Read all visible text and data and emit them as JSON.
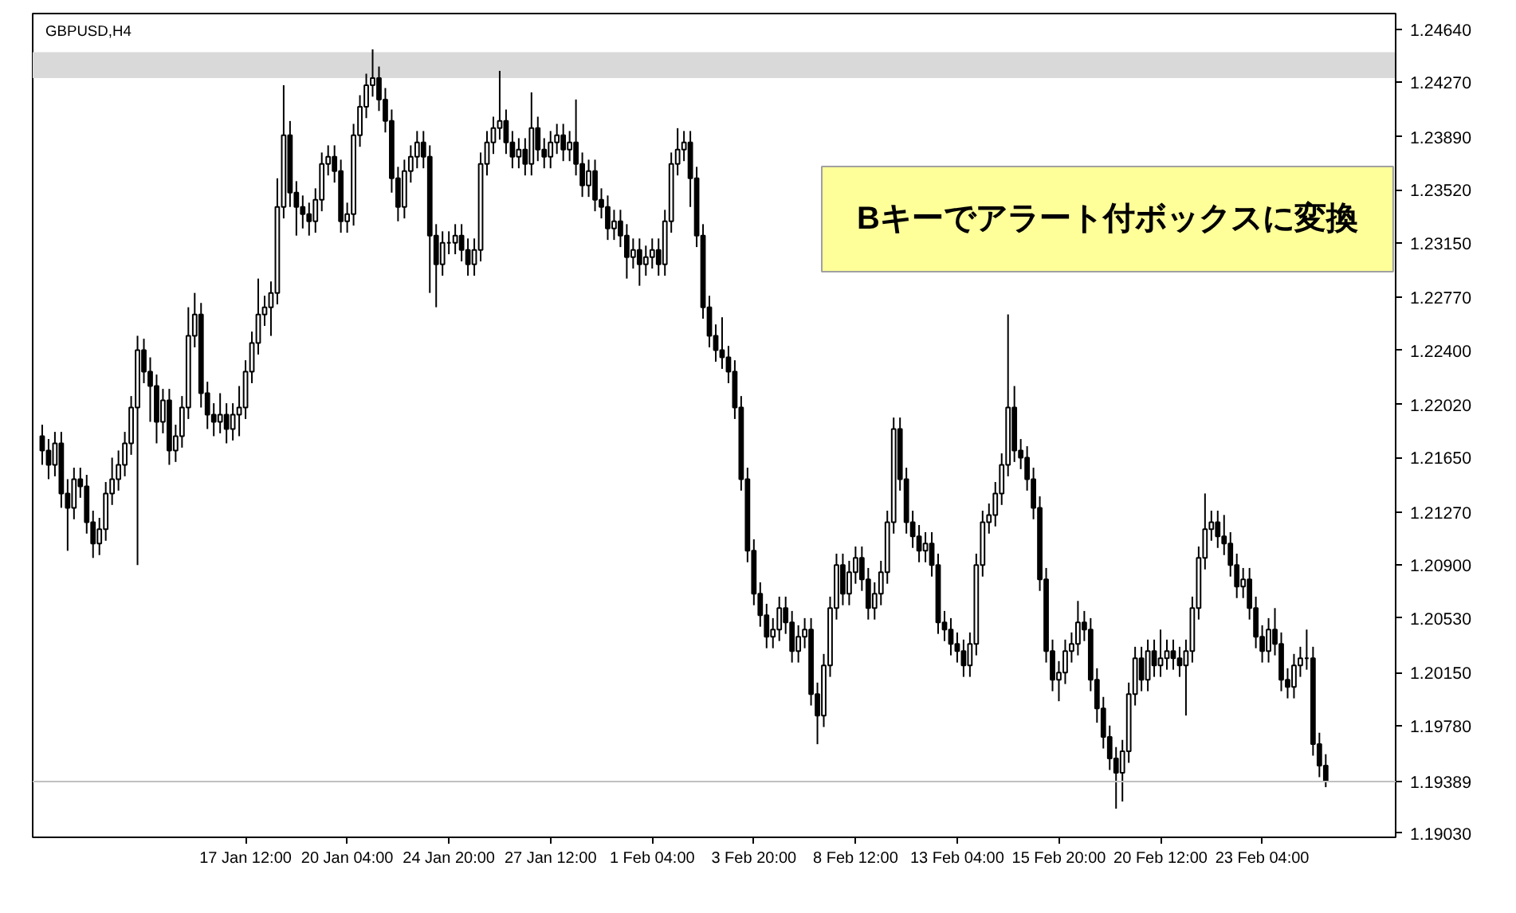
{
  "chart_data": {
    "type": "candlestick",
    "title": "GBPUSD,H4",
    "categories": [
      null,
      null,
      null,
      null,
      null,
      null,
      null,
      null,
      null,
      null,
      null,
      null,
      null,
      null,
      null,
      null,
      null,
      null,
      null,
      null,
      null,
      null,
      null,
      null,
      null,
      null,
      null,
      null,
      null,
      null,
      null,
      null,
      "17 Jan 12:00",
      null,
      null,
      null,
      null,
      null,
      null,
      null,
      null,
      null,
      null,
      null,
      null,
      null,
      null,
      null,
      "20 Jan 04:00",
      null,
      null,
      null,
      null,
      null,
      null,
      null,
      null,
      null,
      null,
      null,
      null,
      null,
      null,
      null,
      "24 Jan 20:00",
      null,
      null,
      null,
      null,
      null,
      null,
      null,
      null,
      null,
      null,
      null,
      null,
      null,
      null,
      null,
      "27 Jan 12:00",
      null,
      null,
      null,
      null,
      null,
      null,
      null,
      null,
      null,
      null,
      null,
      null,
      null,
      null,
      null,
      "1 Feb 04:00",
      null,
      null,
      null,
      null,
      null,
      null,
      null,
      null,
      null,
      null,
      null,
      null,
      null,
      null,
      null,
      "3 Feb 20:00",
      null,
      null,
      null,
      null,
      null,
      null,
      null,
      null,
      null,
      null,
      null,
      null,
      null,
      null,
      null,
      "8 Feb 12:00",
      null,
      null,
      null,
      null,
      null,
      null,
      null,
      null,
      null,
      null,
      null,
      null,
      null,
      null,
      null,
      "13 Feb 04:00",
      null,
      null,
      null,
      null,
      null,
      null,
      null,
      null,
      null,
      null,
      null,
      null,
      null,
      null,
      null,
      "15 Feb 20:00",
      null,
      null,
      null,
      null,
      null,
      null,
      null,
      null,
      null,
      null,
      null,
      null,
      null,
      null,
      null,
      "20 Feb 12:00",
      null,
      null,
      null,
      null,
      null,
      null,
      null,
      null,
      null,
      null,
      null,
      null,
      null,
      null,
      null,
      "23 Feb 04:00",
      null,
      null,
      null,
      null,
      null,
      null,
      null,
      null,
      null,
      null
    ],
    "ohlc": [
      [
        1.218,
        1.2188,
        1.216,
        1.217
      ],
      [
        1.217,
        1.2178,
        1.215,
        1.216
      ],
      [
        1.216,
        1.2183,
        1.2152,
        1.2175
      ],
      [
        1.2175,
        1.2183,
        1.213,
        1.214
      ],
      [
        1.214,
        1.215,
        1.21,
        1.213
      ],
      [
        1.213,
        1.2158,
        1.2122,
        1.215
      ],
      [
        1.215,
        1.2158,
        1.2137,
        1.2145
      ],
      [
        1.2145,
        1.2153,
        1.2112,
        1.212
      ],
      [
        1.212,
        1.2128,
        1.2095,
        1.2105
      ],
      [
        1.2105,
        1.2123,
        1.2097,
        1.2115
      ],
      [
        1.2115,
        1.2148,
        1.2107,
        1.214
      ],
      [
        1.214,
        1.2165,
        1.2132,
        1.215
      ],
      [
        1.215,
        1.217,
        1.2142,
        1.216
      ],
      [
        1.216,
        1.2183,
        1.2152,
        1.2175
      ],
      [
        1.2175,
        1.2208,
        1.2167,
        1.22
      ],
      [
        1.22,
        1.225,
        1.209,
        1.224
      ],
      [
        1.224,
        1.2248,
        1.2217,
        1.2225
      ],
      [
        1.2225,
        1.2235,
        1.219,
        1.2215
      ],
      [
        1.2215,
        1.2223,
        1.2175,
        1.219
      ],
      [
        1.219,
        1.2213,
        1.2182,
        1.2205
      ],
      [
        1.2205,
        1.2213,
        1.216,
        1.217
      ],
      [
        1.217,
        1.2188,
        1.2162,
        1.218
      ],
      [
        1.218,
        1.2208,
        1.2172,
        1.22
      ],
      [
        1.22,
        1.227,
        1.2192,
        1.225
      ],
      [
        1.225,
        1.228,
        1.2242,
        1.2265
      ],
      [
        1.2265,
        1.2273,
        1.22,
        1.221
      ],
      [
        1.221,
        1.2218,
        1.2185,
        1.2195
      ],
      [
        1.2195,
        1.2203,
        1.218,
        1.219
      ],
      [
        1.219,
        1.221,
        1.2182,
        1.2195
      ],
      [
        1.2195,
        1.2203,
        1.2175,
        1.2185
      ],
      [
        1.2185,
        1.2203,
        1.2177,
        1.2195
      ],
      [
        1.2195,
        1.2215,
        1.218,
        1.22
      ],
      [
        1.22,
        1.2233,
        1.2192,
        1.2225
      ],
      [
        1.2225,
        1.2253,
        1.2217,
        1.2245
      ],
      [
        1.2245,
        1.229,
        1.2237,
        1.2265
      ],
      [
        1.2265,
        1.2278,
        1.2257,
        1.227
      ],
      [
        1.227,
        1.2288,
        1.225,
        1.228
      ],
      [
        1.228,
        1.236,
        1.2272,
        1.234
      ],
      [
        1.234,
        1.2425,
        1.2332,
        1.239
      ],
      [
        1.239,
        1.24,
        1.234,
        1.235
      ],
      [
        1.235,
        1.2358,
        1.232,
        1.234
      ],
      [
        1.234,
        1.2348,
        1.2325,
        1.2335
      ],
      [
        1.2335,
        1.2343,
        1.232,
        1.233
      ],
      [
        1.233,
        1.2353,
        1.2322,
        1.2345
      ],
      [
        1.2345,
        1.2378,
        1.2337,
        1.237
      ],
      [
        1.237,
        1.2383,
        1.2362,
        1.2375
      ],
      [
        1.2375,
        1.2383,
        1.2357,
        1.2365
      ],
      [
        1.2365,
        1.2373,
        1.2322,
        1.233
      ],
      [
        1.233,
        1.2343,
        1.2322,
        1.2335
      ],
      [
        1.2335,
        1.2398,
        1.2327,
        1.239
      ],
      [
        1.239,
        1.2418,
        1.2382,
        1.241
      ],
      [
        1.241,
        1.2433,
        1.2402,
        1.2425
      ],
      [
        1.2425,
        1.245,
        1.2417,
        1.243
      ],
      [
        1.243,
        1.2438,
        1.2407,
        1.2415
      ],
      [
        1.2415,
        1.2423,
        1.2392,
        1.24
      ],
      [
        1.24,
        1.2408,
        1.235,
        1.236
      ],
      [
        1.236,
        1.2368,
        1.233,
        1.234
      ],
      [
        1.234,
        1.2373,
        1.2332,
        1.2365
      ],
      [
        1.2365,
        1.2383,
        1.2357,
        1.2375
      ],
      [
        1.2375,
        1.2393,
        1.2367,
        1.2385
      ],
      [
        1.2385,
        1.2393,
        1.2367,
        1.2375
      ],
      [
        1.2375,
        1.2383,
        1.228,
        1.232
      ],
      [
        1.232,
        1.2328,
        1.227,
        1.23
      ],
      [
        1.23,
        1.2323,
        1.2292,
        1.2315
      ],
      [
        1.2315,
        1.2323,
        1.2307,
        1.2315
      ],
      [
        1.2315,
        1.2328,
        1.2307,
        1.232
      ],
      [
        1.232,
        1.2328,
        1.2302,
        1.231
      ],
      [
        1.231,
        1.2318,
        1.2292,
        1.23
      ],
      [
        1.23,
        1.2318,
        1.2292,
        1.231
      ],
      [
        1.231,
        1.2378,
        1.2302,
        1.237
      ],
      [
        1.237,
        1.2393,
        1.2362,
        1.2385
      ],
      [
        1.2385,
        1.2403,
        1.2377,
        1.2395
      ],
      [
        1.2395,
        1.2435,
        1.2387,
        1.24
      ],
      [
        1.24,
        1.2408,
        1.2377,
        1.2385
      ],
      [
        1.2385,
        1.2393,
        1.2367,
        1.2375
      ],
      [
        1.2375,
        1.2388,
        1.2367,
        1.238
      ],
      [
        1.238,
        1.2388,
        1.2362,
        1.237
      ],
      [
        1.237,
        1.242,
        1.2362,
        1.2395
      ],
      [
        1.2395,
        1.2403,
        1.2372,
        1.238
      ],
      [
        1.238,
        1.2388,
        1.2367,
        1.2375
      ],
      [
        1.2375,
        1.2393,
        1.2367,
        1.2385
      ],
      [
        1.2385,
        1.2398,
        1.2377,
        1.239
      ],
      [
        1.239,
        1.2398,
        1.2372,
        1.238
      ],
      [
        1.238,
        1.2393,
        1.2372,
        1.2385
      ],
      [
        1.2385,
        1.2415,
        1.2362,
        1.237
      ],
      [
        1.237,
        1.2378,
        1.2347,
        1.2355
      ],
      [
        1.2355,
        1.2373,
        1.2347,
        1.2365
      ],
      [
        1.2365,
        1.2373,
        1.2337,
        1.2345
      ],
      [
        1.2345,
        1.2353,
        1.2332,
        1.234
      ],
      [
        1.234,
        1.2348,
        1.2317,
        1.2325
      ],
      [
        1.2325,
        1.2338,
        1.2317,
        1.233
      ],
      [
        1.233,
        1.2338,
        1.2312,
        1.232
      ],
      [
        1.232,
        1.2328,
        1.229,
        1.2305
      ],
      [
        1.2305,
        1.2318,
        1.2297,
        1.231
      ],
      [
        1.231,
        1.2318,
        1.2285,
        1.23
      ],
      [
        1.23,
        1.2313,
        1.2292,
        1.2305
      ],
      [
        1.2305,
        1.2318,
        1.2297,
        1.231
      ],
      [
        1.231,
        1.2318,
        1.2292,
        1.23
      ],
      [
        1.23,
        1.2338,
        1.2292,
        1.233
      ],
      [
        1.233,
        1.2378,
        1.2322,
        1.237
      ],
      [
        1.237,
        1.2395,
        1.2362,
        1.238
      ],
      [
        1.238,
        1.2393,
        1.2372,
        1.2385
      ],
      [
        1.2385,
        1.2393,
        1.234,
        1.236
      ],
      [
        1.236,
        1.2368,
        1.2312,
        1.232
      ],
      [
        1.232,
        1.2328,
        1.2262,
        1.227
      ],
      [
        1.227,
        1.2278,
        1.2242,
        1.225
      ],
      [
        1.225,
        1.2258,
        1.2232,
        1.224
      ],
      [
        1.224,
        1.2263,
        1.2227,
        1.2235
      ],
      [
        1.2235,
        1.2243,
        1.2217,
        1.2225
      ],
      [
        1.2225,
        1.2233,
        1.2192,
        1.22
      ],
      [
        1.22,
        1.2208,
        1.2142,
        1.215
      ],
      [
        1.215,
        1.2158,
        1.2092,
        1.21
      ],
      [
        1.21,
        1.2108,
        1.2062,
        1.207
      ],
      [
        1.207,
        1.2078,
        1.2047,
        1.2055
      ],
      [
        1.2055,
        1.2063,
        1.2032,
        1.204
      ],
      [
        1.204,
        1.2053,
        1.2032,
        1.2045
      ],
      [
        1.2045,
        1.2068,
        1.2037,
        1.206
      ],
      [
        1.206,
        1.2068,
        1.2042,
        1.205
      ],
      [
        1.205,
        1.2058,
        1.2022,
        1.203
      ],
      [
        1.203,
        1.2048,
        1.2022,
        1.204
      ],
      [
        1.204,
        1.2053,
        1.2032,
        1.2045
      ],
      [
        1.2045,
        1.2053,
        1.1992,
        1.2
      ],
      [
        1.2,
        1.2008,
        1.1965,
        1.1985
      ],
      [
        1.1985,
        1.2028,
        1.1977,
        1.202
      ],
      [
        1.202,
        1.2068,
        1.2012,
        1.206
      ],
      [
        1.206,
        1.2098,
        1.2052,
        1.209
      ],
      [
        1.209,
        1.2098,
        1.2062,
        1.207
      ],
      [
        1.207,
        1.2093,
        1.2062,
        1.2085
      ],
      [
        1.2085,
        1.2103,
        1.2077,
        1.2095
      ],
      [
        1.2095,
        1.2103,
        1.2072,
        1.208
      ],
      [
        1.208,
        1.2088,
        1.2052,
        1.206
      ],
      [
        1.206,
        1.2078,
        1.2052,
        1.207
      ],
      [
        1.207,
        1.2093,
        1.2062,
        1.2085
      ],
      [
        1.2085,
        1.2128,
        1.2077,
        1.212
      ],
      [
        1.212,
        1.2193,
        1.2112,
        1.2185
      ],
      [
        1.2185,
        1.2193,
        1.2142,
        1.215
      ],
      [
        1.215,
        1.2158,
        1.2112,
        1.212
      ],
      [
        1.212,
        1.2128,
        1.2102,
        1.211
      ],
      [
        1.211,
        1.2118,
        1.2092,
        1.21
      ],
      [
        1.21,
        1.2113,
        1.2092,
        1.2105
      ],
      [
        1.2105,
        1.2113,
        1.2082,
        1.209
      ],
      [
        1.209,
        1.2098,
        1.2042,
        1.205
      ],
      [
        1.205,
        1.2058,
        1.2037,
        1.2045
      ],
      [
        1.2045,
        1.2053,
        1.2027,
        1.2035
      ],
      [
        1.2035,
        1.2043,
        1.2022,
        1.203
      ],
      [
        1.203,
        1.2038,
        1.2012,
        1.202
      ],
      [
        1.202,
        1.2043,
        1.2012,
        1.2035
      ],
      [
        1.2035,
        1.2098,
        1.2027,
        1.209
      ],
      [
        1.209,
        1.2128,
        1.2082,
        1.212
      ],
      [
        1.212,
        1.2133,
        1.2112,
        1.2125
      ],
      [
        1.2125,
        1.2148,
        1.2117,
        1.214
      ],
      [
        1.214,
        1.2168,
        1.2132,
        1.216
      ],
      [
        1.216,
        1.2265,
        1.2152,
        1.22
      ],
      [
        1.22,
        1.2215,
        1.2162,
        1.217
      ],
      [
        1.217,
        1.2178,
        1.2157,
        1.2165
      ],
      [
        1.2165,
        1.2173,
        1.2142,
        1.215
      ],
      [
        1.215,
        1.2158,
        1.2122,
        1.213
      ],
      [
        1.213,
        1.2138,
        1.2072,
        1.208
      ],
      [
        1.208,
        1.2088,
        1.2022,
        1.203
      ],
      [
        1.203,
        1.2038,
        1.2002,
        1.201
      ],
      [
        1.201,
        1.2023,
        1.1995,
        1.2015
      ],
      [
        1.2015,
        1.2038,
        1.2007,
        1.203
      ],
      [
        1.203,
        1.2043,
        1.2022,
        1.2035
      ],
      [
        1.2035,
        1.2065,
        1.2027,
        1.205
      ],
      [
        1.205,
        1.2058,
        1.2037,
        1.2045
      ],
      [
        1.2045,
        1.2053,
        1.2002,
        1.201
      ],
      [
        1.201,
        1.2018,
        1.198,
        1.199
      ],
      [
        1.199,
        1.1998,
        1.1962,
        1.197
      ],
      [
        1.197,
        1.1978,
        1.1947,
        1.1955
      ],
      [
        1.1955,
        1.1963,
        1.192,
        1.1945
      ],
      [
        1.1945,
        1.1968,
        1.1925,
        1.196
      ],
      [
        1.196,
        1.2008,
        1.1952,
        1.2
      ],
      [
        1.2,
        1.2033,
        1.1992,
        1.2025
      ],
      [
        1.2025,
        1.2033,
        1.2002,
        1.201
      ],
      [
        1.201,
        1.2038,
        1.2002,
        1.203
      ],
      [
        1.203,
        1.2038,
        1.2012,
        1.202
      ],
      [
        1.202,
        1.2045,
        1.2012,
        1.2025
      ],
      [
        1.2025,
        1.2038,
        1.2017,
        1.203
      ],
      [
        1.203,
        1.2038,
        1.2017,
        1.2025
      ],
      [
        1.2025,
        1.2033,
        1.2012,
        1.202
      ],
      [
        1.202,
        1.2038,
        1.1985,
        1.203
      ],
      [
        1.203,
        1.2068,
        1.2022,
        1.206
      ],
      [
        1.206,
        1.2103,
        1.2052,
        1.2095
      ],
      [
        1.2095,
        1.214,
        1.2087,
        1.2115
      ],
      [
        1.2115,
        1.2128,
        1.2107,
        1.212
      ],
      [
        1.212,
        1.2128,
        1.2102,
        1.211
      ],
      [
        1.211,
        1.2125,
        1.2097,
        1.2105
      ],
      [
        1.2105,
        1.2113,
        1.2082,
        1.209
      ],
      [
        1.209,
        1.2098,
        1.2067,
        1.2075
      ],
      [
        1.2075,
        1.2088,
        1.2067,
        1.208
      ],
      [
        1.208,
        1.2088,
        1.2052,
        1.206
      ],
      [
        1.206,
        1.2068,
        1.2032,
        1.204
      ],
      [
        1.204,
        1.2048,
        1.2022,
        1.203
      ],
      [
        1.203,
        1.2053,
        1.2022,
        1.2045
      ],
      [
        1.2045,
        1.206,
        1.2027,
        1.2035
      ],
      [
        1.2035,
        1.2043,
        1.2002,
        1.201
      ],
      [
        1.201,
        1.2018,
        1.1997,
        1.2005
      ],
      [
        1.2005,
        1.2028,
        1.1997,
        1.202
      ],
      [
        1.202,
        1.2033,
        1.2012,
        1.2025
      ],
      [
        1.2025,
        1.2045,
        1.2017,
        1.2025
      ],
      [
        1.2025,
        1.2033,
        1.1957,
        1.1965
      ],
      [
        1.1965,
        1.1973,
        1.1942,
        1.195
      ],
      [
        1.195,
        1.1958,
        1.1935,
        1.19389
      ]
    ],
    "ylim": [
      1.19,
      1.2475
    ],
    "yticks": [
      {
        "value": 1.2464,
        "label": "1.24640"
      },
      {
        "value": 1.2427,
        "label": "1.24270"
      },
      {
        "value": 1.2389,
        "label": "1.23890"
      },
      {
        "value": 1.2352,
        "label": "1.23520"
      },
      {
        "value": 1.2315,
        "label": "1.23150"
      },
      {
        "value": 1.2277,
        "label": "1.22770"
      },
      {
        "value": 1.224,
        "label": "1.22400"
      },
      {
        "value": 1.2202,
        "label": "1.22020"
      },
      {
        "value": 1.2165,
        "label": "1.21650"
      },
      {
        "value": 1.2127,
        "label": "1.21270"
      },
      {
        "value": 1.209,
        "label": "1.20900"
      },
      {
        "value": 1.2053,
        "label": "1.20530"
      },
      {
        "value": 1.2015,
        "label": "1.20150"
      },
      {
        "value": 1.1978,
        "label": "1.19780"
      },
      {
        "value": 1.1903,
        "label": "1.19030"
      }
    ],
    "ref_lines": [
      {
        "axis": "y",
        "value": 1.19389,
        "label": "1.19389",
        "color": "#c0c0c0"
      }
    ],
    "bands": [
      {
        "axis": "y",
        "from": 1.243,
        "to": 1.2448,
        "color": "#d9d9d9"
      }
    ],
    "annotations": [
      "Bキーでアラート付ボックスに変換"
    ],
    "grid": false,
    "legend": false
  }
}
